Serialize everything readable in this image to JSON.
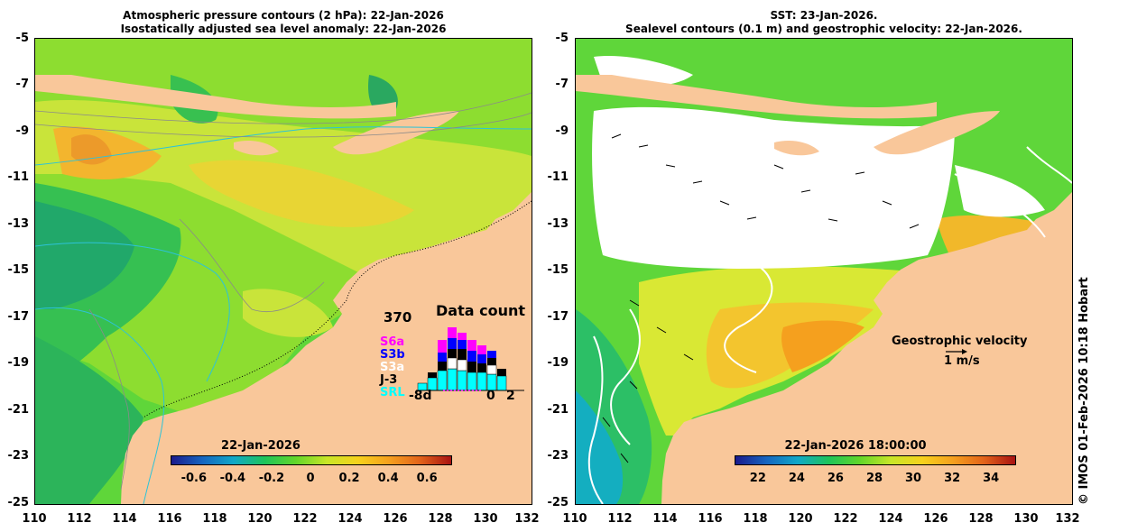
{
  "left_panel": {
    "title_line1": "Atmospheric pressure contours (2 hPa): 22-Jan-2026",
    "title_line2": "Isostatically adjusted sea level anomaly: 22-Jan-2026",
    "colorbar": {
      "date_label": "22-Jan-2026",
      "ticks": [
        "-0.6",
        "-0.4",
        "-0.2",
        "0",
        "0.2",
        "0.4",
        "0.6"
      ],
      "colors": [
        "#1a1a8c",
        "#1565c0",
        "#10a8c8",
        "#1ec45a",
        "#62d62a",
        "#c8e628",
        "#f6d21c",
        "#f5a01e",
        "#e2631a",
        "#a81212"
      ]
    },
    "data_count": {
      "title": "Data count",
      "max_label": "370",
      "x_left": "-8d",
      "x_zero": "0",
      "x_right": "2",
      "missions": [
        {
          "name": "S6a",
          "color": "#ff00ff"
        },
        {
          "name": "S3b",
          "color": "#0000ff"
        },
        {
          "name": "S3a",
          "color": "#ffffff"
        },
        {
          "name": "J-3",
          "color": "#000000"
        },
        {
          "name": "SRL",
          "color": "#00ffff"
        }
      ]
    }
  },
  "right_panel": {
    "title_line1": "SST: 23-Jan-2026.",
    "title_line2": "Sealevel contours (0.1 m) and geostrophic velocity: 22-Jan-2026.",
    "velocity_legend_title": "Geostrophic velocity",
    "velocity_legend_scale": "1 m/s",
    "colorbar": {
      "date_label": "22-Jan-2026 18:00:00",
      "ticks": [
        "22",
        "24",
        "26",
        "28",
        "30",
        "32",
        "34"
      ],
      "colors": [
        "#1a1a8c",
        "#1565c0",
        "#10a8c8",
        "#1ec45a",
        "#62d62a",
        "#c8e628",
        "#f6d21c",
        "#f5a01e",
        "#e2631a",
        "#a81212"
      ]
    }
  },
  "axes": {
    "y_ticks": [
      "-5",
      "-7",
      "-9",
      "-11",
      "-13",
      "-15",
      "-17",
      "-19",
      "-21",
      "-23",
      "-25"
    ],
    "x_ticks": [
      "110",
      "112",
      "114",
      "116",
      "118",
      "120",
      "122",
      "124",
      "126",
      "128",
      "130",
      "132"
    ]
  },
  "copyright": "© IMOS 01-Feb-2026 10:18 Hobart",
  "colors": {
    "land": "#f9c79a",
    "ocean_green": "#5fd63a",
    "ocean_yellow": "#c9e43a",
    "ocean_orange": "#f3b52e",
    "ocean_teal": "#21b58c",
    "cloud": "#ffffff"
  }
}
